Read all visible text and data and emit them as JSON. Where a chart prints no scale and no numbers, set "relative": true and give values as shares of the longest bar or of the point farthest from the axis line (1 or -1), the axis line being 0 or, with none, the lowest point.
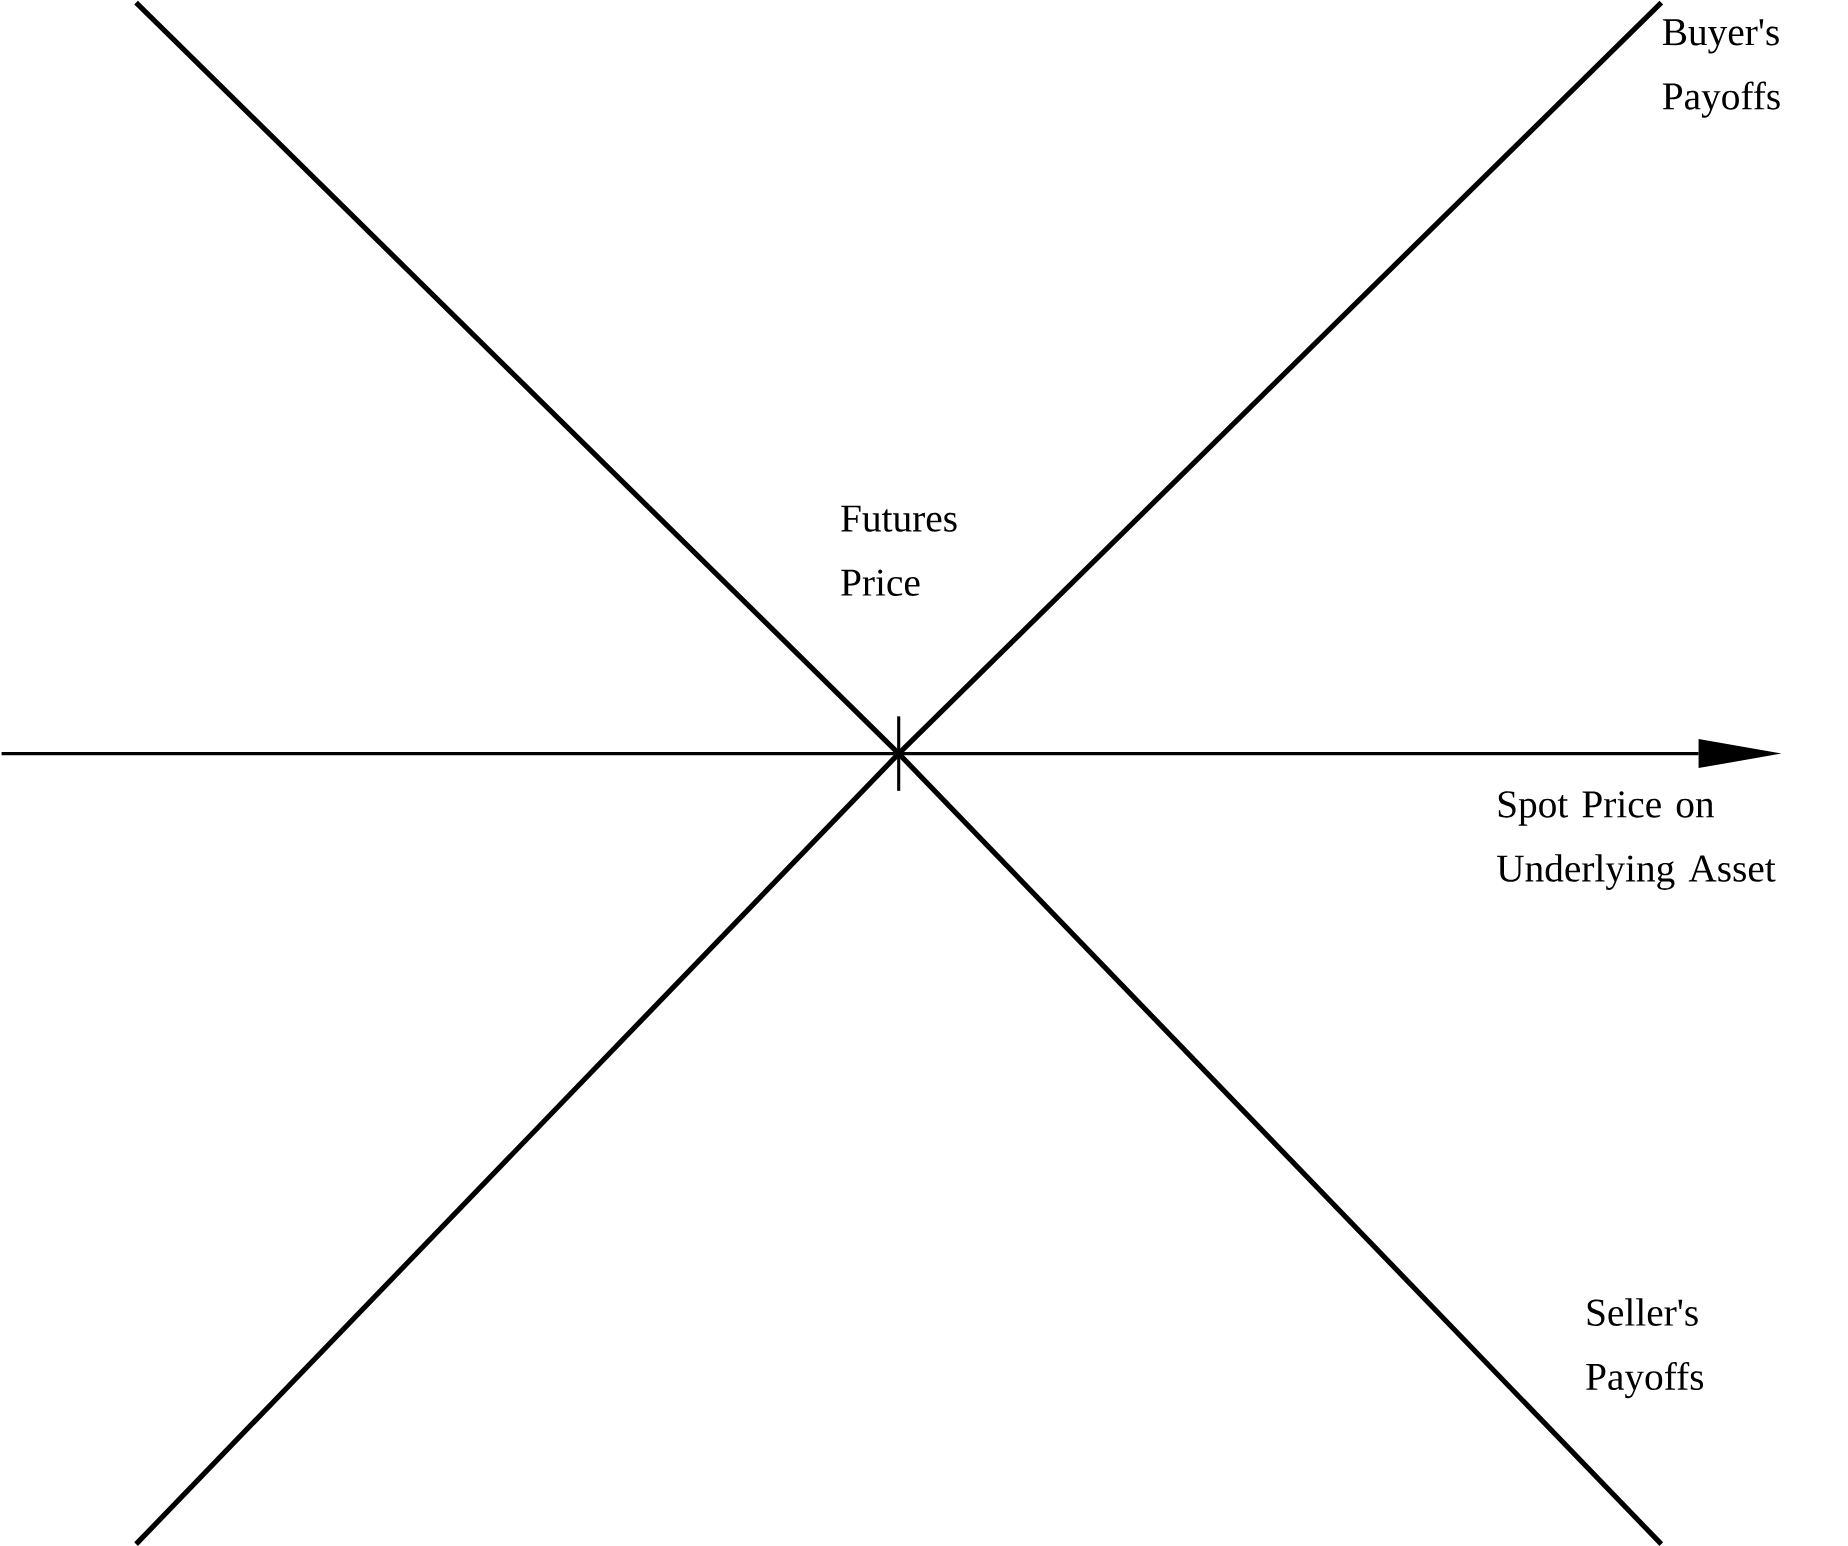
{
  "chart_data": {
    "type": "line",
    "relative": true,
    "xlabel": "Spot Price on Underlying Asset",
    "annotations": [
      "Futures Price"
    ],
    "categories": [
      null,
      null,
      null
    ],
    "series": [
      {
        "name": "Buyer's Payoffs",
        "color": "#000000",
        "values": [
          -1,
          0,
          0.95
        ]
      },
      {
        "name": "Seller's Payoffs",
        "color": "#000000",
        "values": [
          0.95,
          0,
          -1
        ]
      }
    ]
  }
}
